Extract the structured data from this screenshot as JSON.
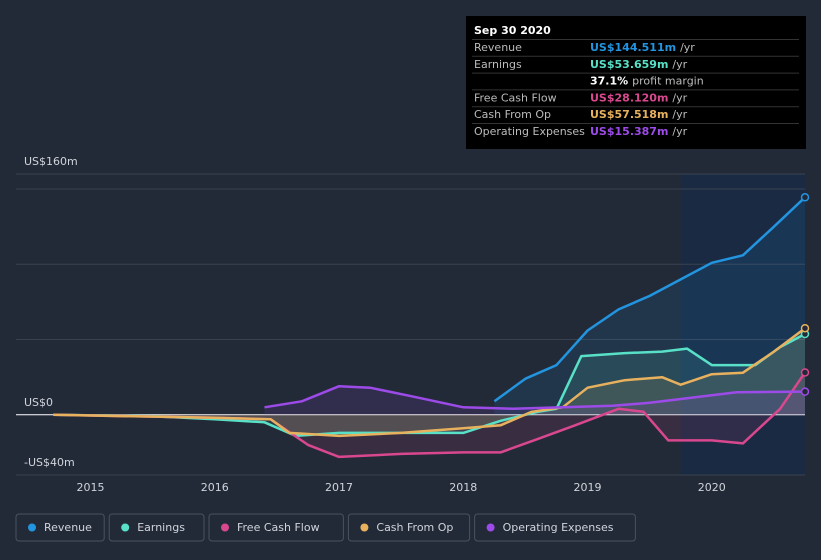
{
  "chart_data": {
    "type": "line",
    "xlim": [
      2014.4,
      2020.75
    ],
    "xticks": [
      2015,
      2016,
      2017,
      2018,
      2019,
      2020
    ],
    "ylim": [
      -40,
      160
    ],
    "yticks": [
      {
        "value": -40,
        "label": "-US$40m"
      },
      {
        "value": 0,
        "label": "US$0"
      },
      {
        "value": 160,
        "label": "US$160m"
      }
    ],
    "grid_lines": [
      50,
      100,
      150
    ],
    "highlight_from": 2019.75,
    "series": [
      {
        "name": "Revenue",
        "color": "#2394df",
        "x": [
          2018.25,
          2018.5,
          2018.75,
          2019.0,
          2019.25,
          2019.5,
          2019.75,
          2020.0,
          2020.25,
          2020.5,
          2020.75
        ],
        "values": [
          9,
          24,
          33,
          56,
          70,
          79,
          90,
          101,
          106,
          125,
          144.511
        ]
      },
      {
        "name": "Earnings",
        "color": "#58e1c7",
        "x": [
          2014.7,
          2015.5,
          2016.0,
          2016.4,
          2016.65,
          2017.0,
          2018.0,
          2018.3,
          2018.6,
          2018.75,
          2018.95,
          2019.3,
          2019.6,
          2019.8,
          2020.0,
          2020.35,
          2020.55,
          2020.75
        ],
        "values": [
          0,
          -1,
          -3,
          -5,
          -14,
          -12,
          -12,
          -4,
          2,
          4,
          39,
          41,
          42,
          44,
          33,
          33,
          45,
          53.659
        ]
      },
      {
        "name": "Free Cash Flow",
        "color": "#d9488f",
        "x": [
          2014.7,
          2016.0,
          2016.45,
          2016.75,
          2017.0,
          2017.5,
          2018.0,
          2018.3,
          2018.6,
          2018.9,
          2019.25,
          2019.45,
          2019.65,
          2020.0,
          2020.25,
          2020.55,
          2020.75
        ],
        "values": [
          0,
          -2,
          -3,
          -20,
          -28,
          -26,
          -25,
          -25,
          -16,
          -7,
          4,
          2,
          -17,
          -17,
          -19,
          4,
          28.12
        ]
      },
      {
        "name": "Cash From Op",
        "color": "#e8b15e",
        "x": [
          2014.7,
          2016.0,
          2016.45,
          2016.6,
          2017.0,
          2017.5,
          2018.0,
          2018.3,
          2018.55,
          2018.8,
          2019.0,
          2019.3,
          2019.6,
          2019.75,
          2020.0,
          2020.25,
          2020.5,
          2020.75
        ],
        "values": [
          0,
          -2,
          -3,
          -12,
          -14,
          -12,
          -9,
          -7,
          2,
          5,
          18,
          23,
          25,
          20,
          27,
          28,
          42,
          57.518
        ]
      },
      {
        "name": "Operating Expenses",
        "color": "#9d4be8",
        "x": [
          2016.4,
          2016.7,
          2017.0,
          2017.25,
          2017.6,
          2018.0,
          2018.4,
          2018.8,
          2019.2,
          2019.5,
          2019.8,
          2020.0,
          2020.2,
          2020.75
        ],
        "values": [
          5,
          9,
          19,
          18,
          12,
          5,
          4,
          5,
          6,
          8,
          11,
          13,
          15,
          15.387
        ]
      }
    ]
  },
  "tooltip": {
    "title": "Sep 30 2020",
    "rows": [
      {
        "label": "Revenue",
        "value": "US$144.511m",
        "unit": "/yr",
        "color": "#2394df"
      },
      {
        "label": "Earnings",
        "value": "US$53.659m",
        "unit": "/yr",
        "color": "#58e1c7"
      },
      {
        "value": "37.1%",
        "unit": "profit margin",
        "color": "#ffffff"
      },
      {
        "label": "Free Cash Flow",
        "value": "US$28.120m",
        "unit": "/yr",
        "color": "#d9488f"
      },
      {
        "label": "Cash From Op",
        "value": "US$57.518m",
        "unit": "/yr",
        "color": "#e8b15e"
      },
      {
        "label": "Operating Expenses",
        "value": "US$15.387m",
        "unit": "/yr",
        "color": "#9d4be8"
      }
    ]
  }
}
